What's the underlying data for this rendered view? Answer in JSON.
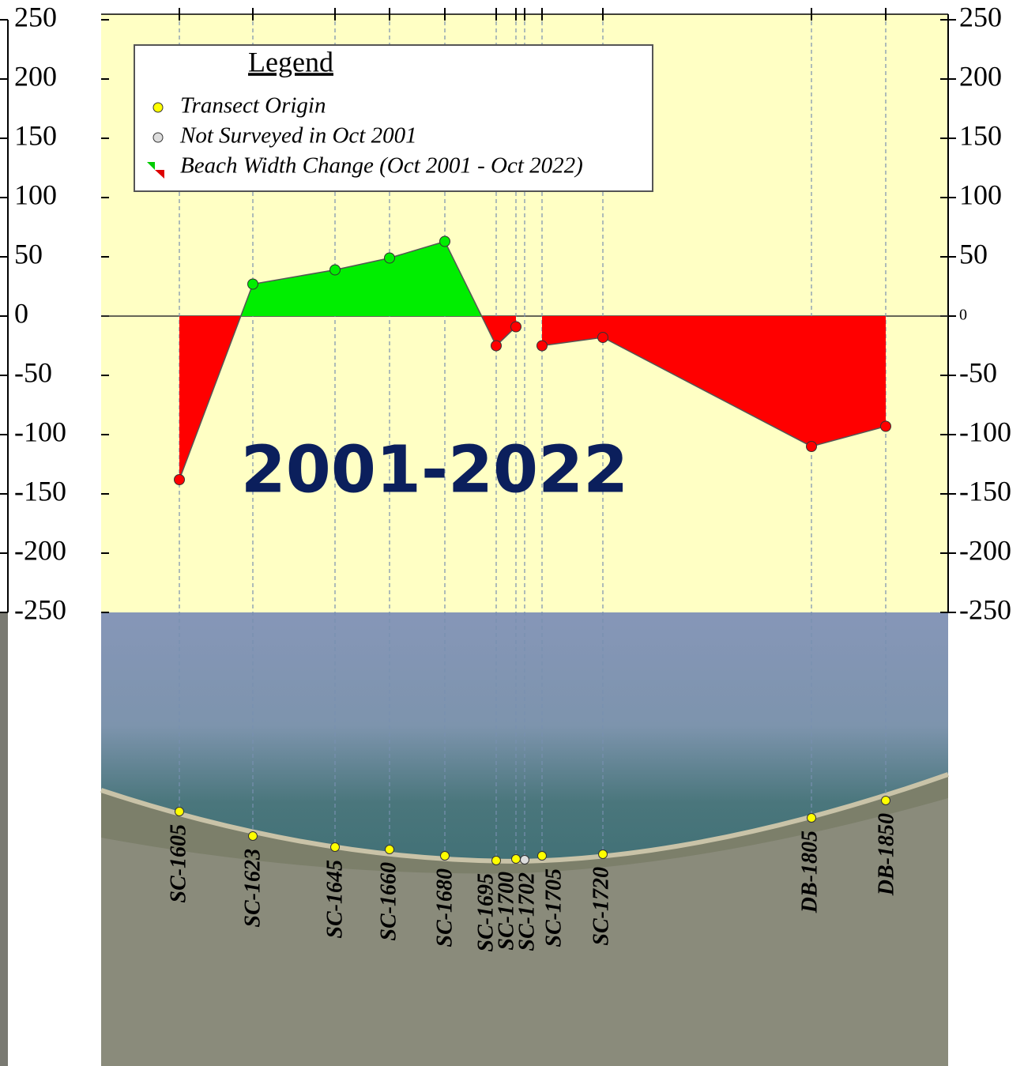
{
  "chart_data": {
    "type": "area",
    "title": "2001-2022",
    "legend": {
      "title": "Legend",
      "items": [
        "Transect Origin",
        "Not Surveyed in Oct 2001",
        "Beach Width Change (Oct 2001 - Oct 2022)"
      ],
      "position": "upper left"
    },
    "categories": [
      "SC-1605",
      "SC-1623",
      "SC-1645",
      "SC-1660",
      "SC-1680",
      "SC-1695",
      "SC-1700",
      "SC-1702",
      "SC-1705",
      "SC-1720",
      "DB-1805",
      "DB-1850"
    ],
    "values": [
      -138,
      27,
      39,
      49,
      63,
      -25,
      -9,
      null,
      -25,
      -18,
      -110,
      -93
    ],
    "positive_color": "#00ee00",
    "negative_color": "#ff0000",
    "ylim": [
      -250,
      250
    ],
    "yticks": [
      250,
      200,
      150,
      100,
      50,
      0,
      -50,
      -100,
      -150,
      -200,
      -250
    ],
    "y2lim": [
      -250,
      250
    ],
    "y2ticks": [
      250,
      200,
      150,
      100,
      50,
      0,
      -50,
      -100,
      -150,
      -200,
      -250
    ]
  }
}
